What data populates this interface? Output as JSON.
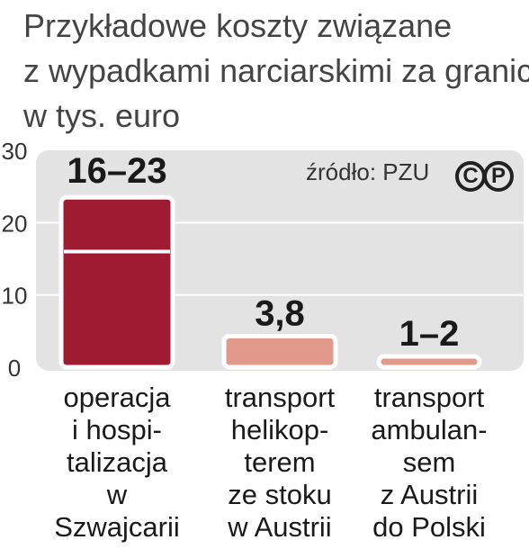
{
  "title_lines": [
    "Przykładowe koszty związane",
    "z wypadkami narciarskimi za granicą",
    "w tys. euro"
  ],
  "source": "źródło: PZU",
  "copyright_marks": [
    "C",
    "P"
  ],
  "colors": {
    "panel": "#e3e3e3",
    "bar_dark": "#9e1b32",
    "bar_light": "#e0998a",
    "bar_outline": "#ffffff",
    "text": "#1a1a1a"
  },
  "chart_data": {
    "type": "bar",
    "ylim": [
      0,
      30
    ],
    "yticks": [
      0,
      10,
      20,
      30
    ],
    "grid": true,
    "categories": [
      [
        "operacja",
        "i hospi-",
        "talizacja",
        "w",
        "Szwajcarii"
      ],
      [
        "transport",
        "helikop-",
        "terem",
        "ze stoku",
        "w Austrii"
      ],
      [
        "transport",
        "ambulan-",
        "sem",
        "z Austrii",
        "do Polski"
      ]
    ],
    "ranges": [
      [
        16,
        23
      ],
      [
        3.8,
        3.8
      ],
      [
        1,
        2
      ]
    ],
    "value_labels": [
      "16–23",
      "3,8",
      "1–2"
    ]
  }
}
